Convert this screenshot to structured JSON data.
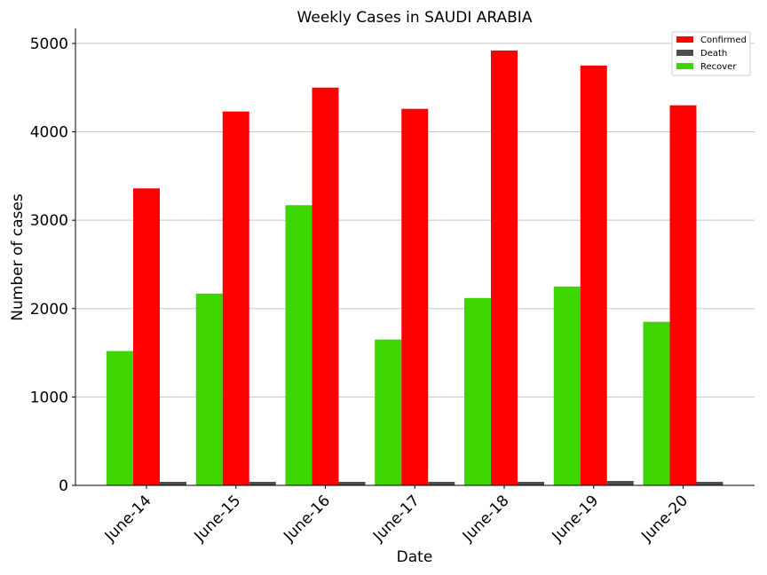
{
  "chart_data": {
    "type": "bar",
    "title": "Weekly Cases in SAUDI ARABIA",
    "xlabel": "Date",
    "ylabel": "Number of cases",
    "categories": [
      "June-14",
      "June-15",
      "June-16",
      "June-17",
      "June-18",
      "June-19",
      "June-20"
    ],
    "series": [
      {
        "name": "Recover",
        "color": "#3dd600",
        "values": [
          1520,
          2170,
          3170,
          1650,
          2120,
          2250,
          1850
        ]
      },
      {
        "name": "Confirmed",
        "color": "#ff0000",
        "values": [
          3360,
          4230,
          4500,
          4260,
          4920,
          4750,
          4300
        ]
      },
      {
        "name": "Death",
        "color": "#4d4d4d",
        "values": [
          40,
          40,
          40,
          40,
          40,
          50,
          40
        ]
      }
    ],
    "legend_order": [
      "Confirmed",
      "Death",
      "Recover"
    ],
    "ylim": [
      0,
      5170
    ],
    "yticks": [
      0,
      1000,
      2000,
      3000,
      4000,
      5000
    ],
    "grid": "horizontal",
    "legend_placement": "top-right"
  }
}
